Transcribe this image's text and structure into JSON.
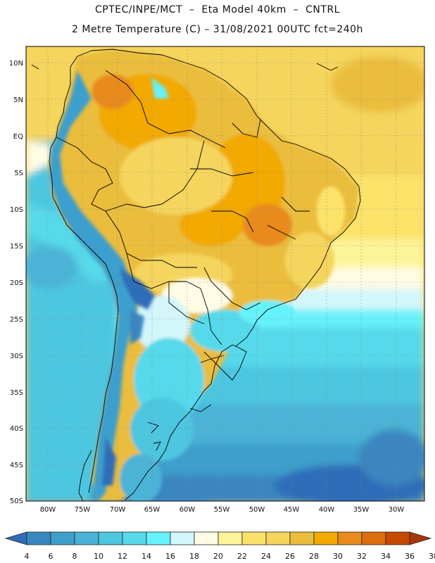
{
  "header": {
    "line1": "CPTEC/INPE/MCT  –  Eta Model 40km  –  CNTRL",
    "line2": "2 Metre Temperature (C) – 31/08/2021 00UTC fct=240h"
  },
  "map": {
    "lat_labels": [
      "10N",
      "5N",
      "EQ",
      "5S",
      "10S",
      "15S",
      "20S",
      "25S",
      "30S",
      "35S",
      "40S",
      "45S",
      "50S"
    ],
    "lon_labels": [
      "80W",
      "75W",
      "70W",
      "65W",
      "60W",
      "55W",
      "50W",
      "45W",
      "40W",
      "35W",
      "30W"
    ],
    "lat_range": [
      12,
      -50
    ],
    "lon_range": [
      -83,
      -26
    ]
  },
  "colorbar": {
    "labels": [
      "4",
      "6",
      "8",
      "10",
      "12",
      "14",
      "16",
      "18",
      "20",
      "22",
      "24",
      "26",
      "28",
      "30",
      "32",
      "34",
      "36",
      "38"
    ],
    "colors": [
      "#2f6db8",
      "#3a86c0",
      "#3e9fcd",
      "#4bb3d6",
      "#4dc6e0",
      "#57d9ea",
      "#66f2fb",
      "#d3f6fb",
      "#fffbe4",
      "#fdf49a",
      "#fbe36b",
      "#f5d55d",
      "#ebbd3d",
      "#f2a900",
      "#e98a1c",
      "#dd6e0d",
      "#c84a00",
      "#a9360b"
    ]
  }
}
